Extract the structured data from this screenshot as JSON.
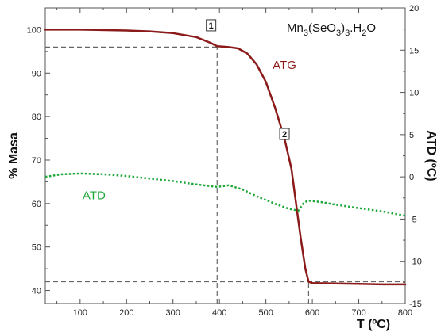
{
  "chart_data": {
    "type": "line",
    "xlabel": "T (ºC)",
    "ylabel_left": "% Masa",
    "ylabel_right": "ATD (ºC)",
    "xlim": [
      25,
      800
    ],
    "ylim_left": [
      37,
      105
    ],
    "ylim_right": [
      -15,
      20
    ],
    "x_ticks": [
      "100",
      "200",
      "300",
      "400",
      "500",
      "600",
      "700",
      "800"
    ],
    "y_left_ticks": [
      "40",
      "50",
      "60",
      "70",
      "80",
      "90",
      "100"
    ],
    "y_right_ticks": [
      "-15",
      "-10",
      "-5",
      "0",
      "5",
      "10",
      "15",
      "20"
    ],
    "grid": false,
    "formula": {
      "parts": [
        {
          "text": "Mn",
          "sub": false
        },
        {
          "text": "3",
          "sub": true
        },
        {
          "text": "(SeO",
          "sub": false
        },
        {
          "text": "3",
          "sub": true
        },
        {
          "text": ")",
          "sub": false
        },
        {
          "text": "3",
          "sub": true
        },
        {
          "text": ".H",
          "sub": false
        },
        {
          "text": "2",
          "sub": true
        },
        {
          "text": "O",
          "sub": false
        }
      ]
    },
    "series": [
      {
        "name": "ATG",
        "axis": "left",
        "color": "#8b1a1a",
        "style": "solid",
        "x": [
          25,
          100,
          200,
          250,
          300,
          350,
          380,
          395,
          420,
          440,
          460,
          480,
          500,
          520,
          540,
          555,
          565,
          575,
          585,
          592,
          600,
          650,
          700,
          750,
          800
        ],
        "y": [
          100,
          100,
          99.8,
          99.6,
          99.2,
          98.3,
          97,
          96.2,
          96,
          95.7,
          94.5,
          92,
          88,
          82,
          75,
          68,
          60,
          52,
          45,
          42,
          41.7,
          41.6,
          41.5,
          41.4,
          41.4
        ]
      },
      {
        "name": "ATD",
        "axis": "right",
        "color": "#1fa83a",
        "style": "dotted",
        "x": [
          25,
          60,
          100,
          150,
          200,
          250,
          300,
          350,
          395,
          420,
          450,
          480,
          520,
          550,
          570,
          580,
          590,
          620,
          650,
          700,
          750,
          800
        ],
        "y": [
          0,
          0.3,
          0.4,
          0.3,
          0.1,
          -0.2,
          -0.5,
          -0.9,
          -1.2,
          -1.0,
          -1.5,
          -2.3,
          -3.2,
          -3.8,
          -4.0,
          -3.2,
          -2.8,
          -3.0,
          -3.3,
          -3.7,
          -4.1,
          -4.6
        ]
      }
    ],
    "annotations": {
      "series_labels": [
        {
          "series": "ATG",
          "text": "ATG",
          "at": {
            "x": 540,
            "y": 91
          }
        },
        {
          "series": "ATD",
          "text": "ATD",
          "at": {
            "x": 130,
            "y": 61
          }
        }
      ],
      "markers": [
        {
          "text": "1",
          "at": {
            "x": 382,
            "y": 101
          }
        },
        {
          "text": "2",
          "at": {
            "x": 540,
            "y": 76
          }
        }
      ],
      "dashed_lines": [
        {
          "orientation": "horizontal",
          "axis": "left",
          "value": 96,
          "from": 25,
          "to": 395
        },
        {
          "orientation": "vertical",
          "value": 395,
          "from": 37,
          "to": 96
        },
        {
          "orientation": "horizontal",
          "axis": "left",
          "value": 42,
          "from": 25,
          "to": 800
        },
        {
          "orientation": "vertical",
          "value": 592,
          "from": 37,
          "to": 42
        }
      ]
    }
  }
}
